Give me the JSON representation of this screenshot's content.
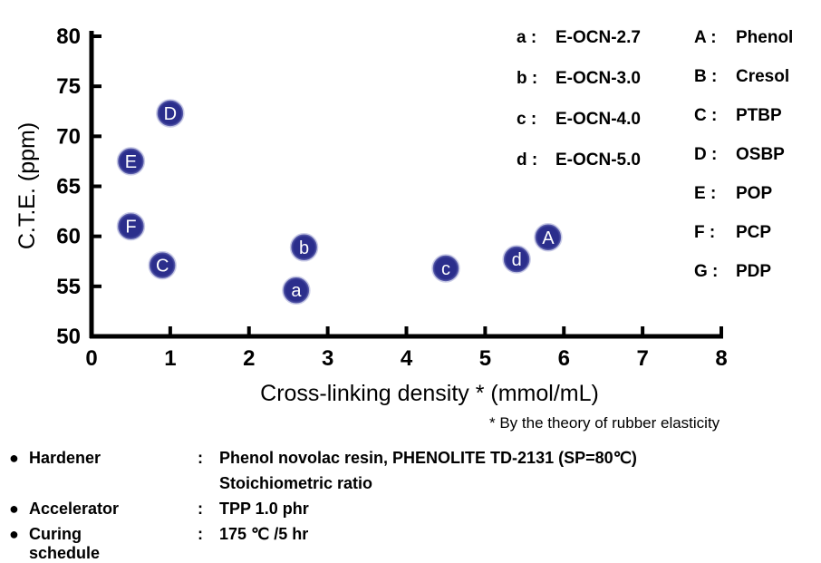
{
  "chart_data": {
    "type": "scatter",
    "xlabel": "Cross-linking density * (mmol/mL)",
    "ylabel": "C.T.E.  (ppm)",
    "xlim": [
      0,
      8
    ],
    "ylim": [
      50,
      80
    ],
    "xticks": [
      "0",
      "1",
      "2",
      "3",
      "4",
      "5",
      "6",
      "7",
      "8"
    ],
    "yticks": [
      "50",
      "55",
      "60",
      "65",
      "70",
      "75",
      "80"
    ],
    "grid": false,
    "point_color": "#2b2e8c",
    "points": [
      {
        "label": "D",
        "x": 1.0,
        "y": 72.3
      },
      {
        "label": "E",
        "x": 0.5,
        "y": 67.5
      },
      {
        "label": "F",
        "x": 0.5,
        "y": 61.0
      },
      {
        "label": "C",
        "x": 0.9,
        "y": 57.1
      },
      {
        "label": "b",
        "x": 2.7,
        "y": 58.9
      },
      {
        "label": "a",
        "x": 2.6,
        "y": 54.6
      },
      {
        "label": "c",
        "x": 4.5,
        "y": 56.8
      },
      {
        "label": "d",
        "x": 5.4,
        "y": 57.7
      },
      {
        "label": "A",
        "x": 5.8,
        "y": 59.9
      }
    ],
    "legend_left": [
      {
        "key": "a",
        "text": "E-OCN-2.7"
      },
      {
        "key": "b",
        "text": "E-OCN-3.0"
      },
      {
        "key": "c",
        "text": "E-OCN-4.0"
      },
      {
        "key": "d",
        "text": "E-OCN-5.0"
      }
    ],
    "legend_right": [
      {
        "key": "A",
        "text": "Phenol"
      },
      {
        "key": "B",
        "text": "Cresol"
      },
      {
        "key": "C",
        "text": "PTBP"
      },
      {
        "key": "D",
        "text": "OSBP"
      },
      {
        "key": "E",
        "text": "POP"
      },
      {
        "key": "F",
        "text": "PCP"
      },
      {
        "key": "G",
        "text": "PDP"
      }
    ],
    "legend_placement": "top-right"
  },
  "footnote": "* By the theory of rubber elasticity",
  "conditions": {
    "bullet": "●",
    "colon": ":",
    "hardener_label": "Hardener",
    "hardener_value": "Phenol novolac resin, PHENOLITE TD-2131 (SP=80℃)",
    "hardener_value2": "Stoichiometric ratio",
    "accelerator_label": "Accelerator",
    "accelerator_value": "TPP  1.0 phr",
    "curing_label": "Curing schedule",
    "curing_value": "175 ℃ /5 hr"
  }
}
